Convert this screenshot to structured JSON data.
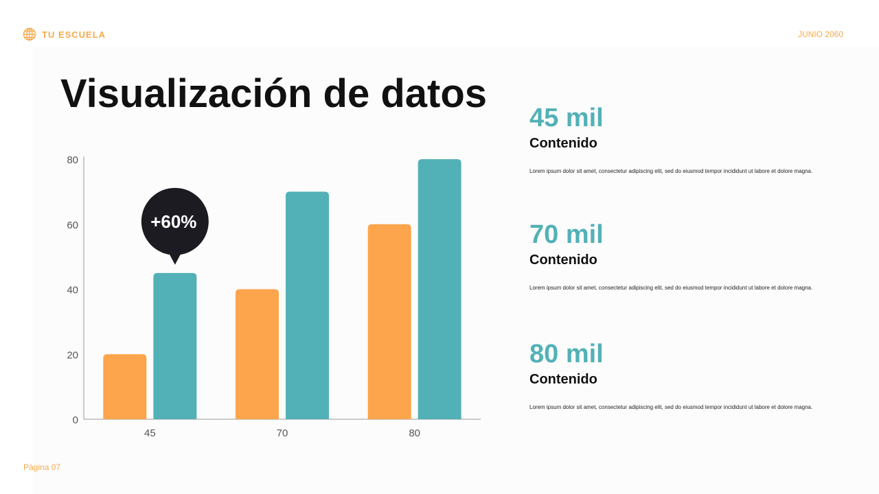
{
  "header": {
    "brand": "TU ESCUELA",
    "date": "JUNIO 2060"
  },
  "footer": {
    "page": "Página 07"
  },
  "title": "Visualización de datos",
  "stats": [
    {
      "value": "45 mil",
      "title": "Contenido",
      "text": "Lorem ipsum dolor sit amet, consectetur adipiscing elit, sed do eiusmod tempor incididunt ut labore et dolore magna."
    },
    {
      "value": "70 mil",
      "title": "Contenido",
      "text": "Lorem ipsum dolor sit amet, consectetur adipiscing elit, sed do eiusmod tempor incididunt ut labore et dolore magna."
    },
    {
      "value": "80 mil",
      "title": "Contenido",
      "text": "Lorem ipsum dolor sit amet, consectetur adipiscing elit, sed do eiusmod tempor incididunt ut labore et dolore magna."
    }
  ],
  "chart_data": {
    "type": "bar",
    "categories": [
      "45",
      "70",
      "80"
    ],
    "series": [
      {
        "values": [
          20,
          40,
          60
        ],
        "color": "#fca54c"
      },
      {
        "values": [
          45,
          70,
          80
        ],
        "color": "#52b1b6"
      }
    ],
    "ylim": [
      0,
      80
    ],
    "yticks": [
      0,
      20,
      40,
      60,
      80
    ],
    "annotation": {
      "text": "+60%",
      "category": "45",
      "series": 1,
      "color": "#1c1b22"
    },
    "grid": false
  }
}
